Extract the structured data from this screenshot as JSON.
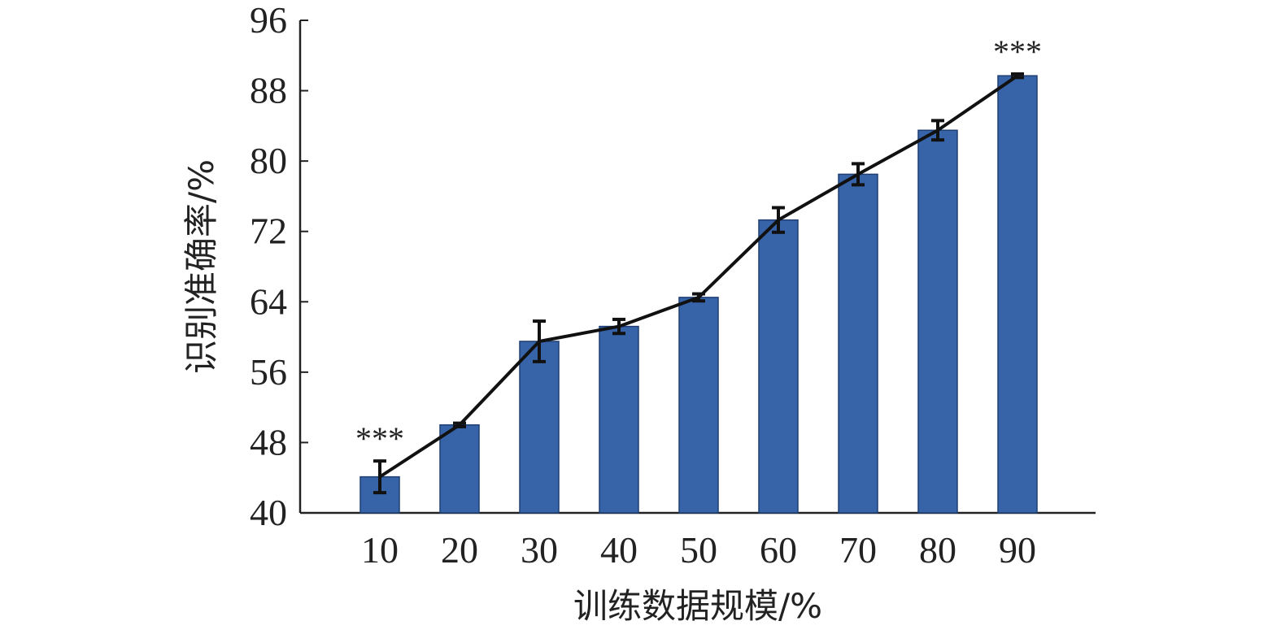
{
  "chart_data": {
    "type": "bar",
    "xlabel": "训练数据规模/%",
    "ylabel": "识别准确率/%",
    "categories": [
      "10",
      "20",
      "30",
      "40",
      "50",
      "60",
      "70",
      "80",
      "90"
    ],
    "series": [
      {
        "values": [
          44.1,
          50.0,
          59.5,
          61.2,
          64.5,
          73.3,
          78.5,
          83.5,
          89.7
        ],
        "error": [
          1.8,
          0.2,
          2.3,
          0.8,
          0.4,
          1.4,
          1.2,
          1.1,
          0.2
        ],
        "line_overlay": true,
        "color": "#3763a8"
      }
    ],
    "ylim": [
      40,
      96
    ],
    "yticks": [
      40,
      48,
      56,
      64,
      72,
      80,
      88,
      96
    ],
    "annotations": [
      {
        "category": "10",
        "text": "***"
      },
      {
        "category": "90",
        "text": "***"
      }
    ],
    "grid": false,
    "legend": "none"
  }
}
